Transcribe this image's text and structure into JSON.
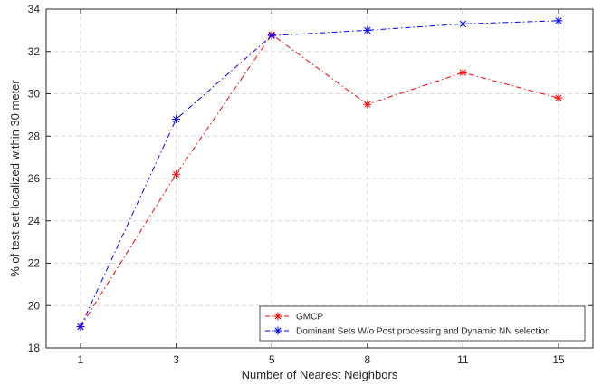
{
  "chart_data": {
    "type": "line",
    "title": "",
    "xlabel": "Number of Nearest Neighbors",
    "ylabel": "% of test set localized within 30 meter",
    "x": [
      1,
      3,
      5,
      8,
      11,
      15
    ],
    "x_tick_labels": [
      "1",
      "3",
      "5",
      "8",
      "11",
      "15"
    ],
    "y_ticks": [
      18,
      20,
      22,
      24,
      26,
      28,
      30,
      32,
      34
    ],
    "y_tick_labels": [
      "18",
      "20",
      "22",
      "24",
      "26",
      "28",
      "30",
      "32",
      "34"
    ],
    "ylim": [
      18,
      34
    ],
    "x_scale": "categorical-equal-spacing",
    "grid": true,
    "legend_position": "bottom-right",
    "series": [
      {
        "name": "GMCP",
        "color": "#ff0000",
        "line_style": "dash-dot",
        "marker": "asterisk",
        "values": [
          19.0,
          26.2,
          32.8,
          29.5,
          31.0,
          29.8
        ]
      },
      {
        "name": "Dominant Sets W/o Post processing and Dynamic NN selection",
        "color": "#0000ff",
        "line_style": "dash-dot",
        "marker": "asterisk",
        "values": [
          19.0,
          28.8,
          32.75,
          33.0,
          33.3,
          33.45
        ]
      }
    ]
  }
}
